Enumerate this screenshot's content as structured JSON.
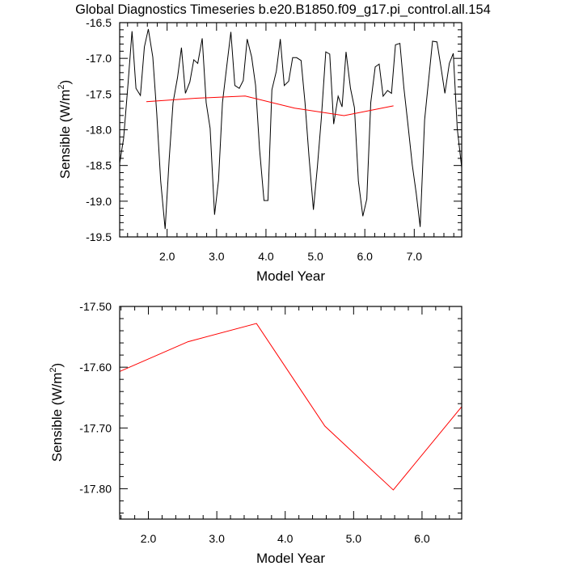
{
  "title": "Global Diagnostics Timeseries b.e20.B1850.f09_g17.pi_control.all.154",
  "chart_data": [
    {
      "type": "line",
      "xlabel": "Model Year",
      "ylabel_main": "Sensible (W/m",
      "ylabel_sup": "2",
      "ylabel_close": ")",
      "xlim": [
        1.04,
        7.96
      ],
      "ylim": [
        -19.5,
        -16.5
      ],
      "xticks": [
        2,
        3,
        4,
        5,
        6,
        7
      ],
      "xtick_labels": [
        "2.0",
        "3.0",
        "4.0",
        "5.0",
        "6.0",
        "7.0"
      ],
      "yticks": [
        -16.5,
        -17,
        -17.5,
        -18,
        -18.5,
        -19,
        -19.5
      ],
      "ytick_labels": [
        "-16.5",
        "-17.0",
        "-17.5",
        "-18.0",
        "-18.5",
        "-19.0",
        "-19.5"
      ],
      "series": [
        {
          "color": "#000000",
          "x": [
            1.04,
            1.12,
            1.21,
            1.29,
            1.37,
            1.46,
            1.54,
            1.62,
            1.71,
            1.79,
            1.87,
            1.96,
            2.04,
            2.12,
            2.21,
            2.29,
            2.37,
            2.46,
            2.54,
            2.62,
            2.71,
            2.79,
            2.87,
            2.96,
            3.04,
            3.12,
            3.21,
            3.29,
            3.37,
            3.46,
            3.54,
            3.62,
            3.71,
            3.79,
            3.87,
            3.96,
            4.04,
            4.12,
            4.21,
            4.29,
            4.37,
            4.46,
            4.54,
            4.62,
            4.71,
            4.79,
            4.87,
            4.96,
            5.04,
            5.12,
            5.21,
            5.29,
            5.37,
            5.46,
            5.54,
            5.62,
            5.71,
            5.79,
            5.87,
            5.96,
            6.04,
            6.12,
            6.21,
            6.29,
            6.37,
            6.46,
            6.54,
            6.62,
            6.71,
            6.79,
            6.87,
            6.96,
            7.04,
            7.12,
            7.21,
            7.29,
            7.37,
            7.46,
            7.54,
            7.62,
            7.71,
            7.79,
            7.87,
            7.96
          ],
          "y": [
            -18.47,
            -18.12,
            -17.35,
            -16.62,
            -17.42,
            -17.52,
            -16.84,
            -16.59,
            -16.98,
            -17.77,
            -18.72,
            -19.39,
            -18.43,
            -17.62,
            -17.27,
            -16.85,
            -17.49,
            -17.33,
            -17.02,
            -17.07,
            -16.72,
            -17.62,
            -17.98,
            -19.19,
            -18.71,
            -17.62,
            -17.09,
            -16.63,
            -17.38,
            -17.42,
            -17.31,
            -16.73,
            -16.98,
            -17.38,
            -18.27,
            -18.99,
            -18.99,
            -17.44,
            -17.18,
            -16.73,
            -17.38,
            -17.32,
            -16.99,
            -16.99,
            -17.03,
            -17.62,
            -18.37,
            -19.12,
            -18.52,
            -17.84,
            -16.91,
            -16.94,
            -17.92,
            -17.53,
            -17.68,
            -16.91,
            -17.42,
            -17.69,
            -18.72,
            -19.21,
            -18.97,
            -17.62,
            -17.12,
            -17.08,
            -17.53,
            -17.45,
            -17.49,
            -16.81,
            -16.79,
            -17.41,
            -17.91,
            -18.49,
            -18.89,
            -19.36,
            -17.86,
            -17.31,
            -16.76,
            -16.77,
            -17.12,
            -17.49,
            -17.07,
            -16.93,
            -17.98,
            -18.53
          ]
        },
        {
          "color": "#ff0000",
          "x": [
            1.58,
            2.58,
            3.58,
            4.58,
            5.58,
            6.58
          ],
          "y": [
            -17.607,
            -17.558,
            -17.528,
            -17.697,
            -17.802,
            -17.665
          ]
        }
      ]
    },
    {
      "type": "line",
      "xlabel": "Model Year",
      "ylabel_main": "Sensible (W/m",
      "ylabel_sup": "2",
      "ylabel_close": ")",
      "xlim": [
        1.58,
        6.58
      ],
      "ylim": [
        -17.85,
        -17.5
      ],
      "xticks": [
        2,
        3,
        4,
        5,
        6
      ],
      "xtick_labels": [
        "2.0",
        "3.0",
        "4.0",
        "5.0",
        "6.0"
      ],
      "yticks": [
        -17.5,
        -17.6,
        -17.7,
        -17.8
      ],
      "ytick_labels": [
        "-17.50",
        "-17.60",
        "-17.70",
        "-17.80"
      ],
      "series": [
        {
          "color": "#ff0000",
          "x": [
            1.58,
            2.58,
            3.58,
            4.58,
            5.58,
            6.58
          ],
          "y": [
            -17.607,
            -17.558,
            -17.528,
            -17.697,
            -17.802,
            -17.665
          ]
        }
      ]
    }
  ]
}
